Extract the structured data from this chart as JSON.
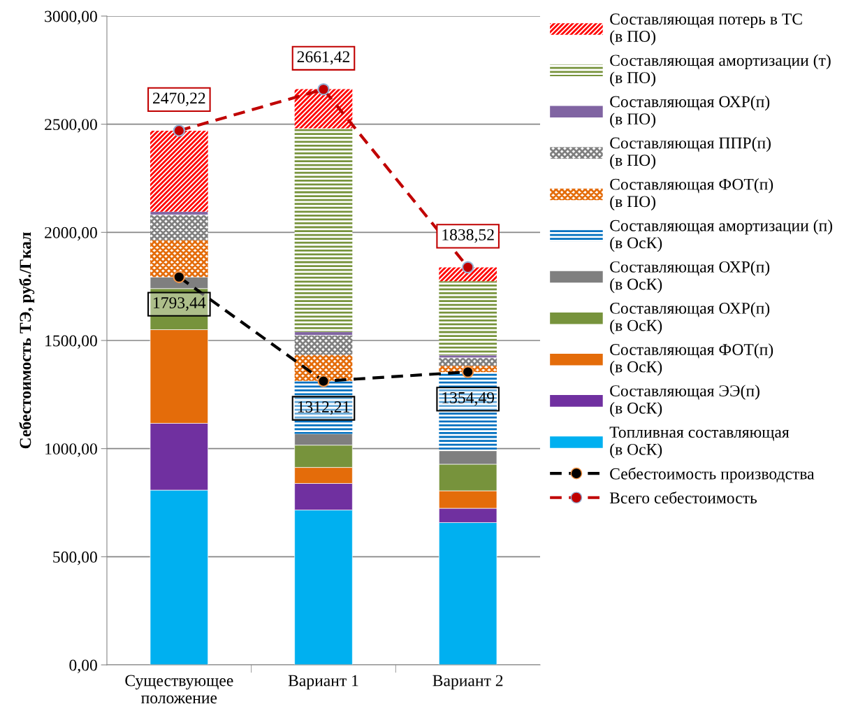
{
  "chart_data": {
    "type": "bar",
    "stacked": true,
    "ylabel": "Себестоимость ТЭ, руб./Гкал",
    "categories": [
      "Существующее\nположение",
      "Вариант 1",
      "Вариант 2"
    ],
    "ylim": [
      0,
      3000
    ],
    "yticks": [
      {
        "value": 0,
        "label": "0,00"
      },
      {
        "value": 500,
        "label": "500,00"
      },
      {
        "value": 1000,
        "label": "1000,00"
      },
      {
        "value": 1500,
        "label": "1500,00"
      },
      {
        "value": 2000,
        "label": "2000,00"
      },
      {
        "value": 2500,
        "label": "2500,00"
      },
      {
        "value": 3000,
        "label": "3000,00"
      }
    ],
    "grid": "y",
    "legend": "right",
    "series": [
      {
        "name": "Топливная составляющая\n(в ОсК)",
        "color": "#00b0f0",
        "values": [
          808,
          716,
          658
        ]
      },
      {
        "name": "Составляющая ЭЭ(п)\n(в ОсК)",
        "color": "#7030a0",
        "values": [
          309,
          123,
          66
        ]
      },
      {
        "name": "Составляющая ФОТ(п)\n(в ОсК)",
        "color": "#e46c0a",
        "values": [
          433,
          74,
          81
        ]
      },
      {
        "name": "Составляющая ОХР(п)\n(в ОсК)",
        "color": "#77933c",
        "values": [
          190,
          103,
          123
        ]
      },
      {
        "name": "Составляющая ОХР(п)\n(в ОсК)",
        "color": "#7f7f7f",
        "values": [
          53,
          52,
          62
        ]
      },
      {
        "name": "Составляющая амортизации (п)\n(в ОсК)",
        "color": "#0070c0",
        "values": [
          0,
          245,
          364
        ]
      },
      {
        "name": "Составляющая ФОТ(п)\n(в ПО)",
        "color": "#e46c0a",
        "values": [
          171,
          121,
          29
        ]
      },
      {
        "name": "Составляющая ППР(п)\n(в ПО)",
        "color": "#7f7f7f",
        "values": [
          117,
          90,
          37
        ]
      },
      {
        "name": "Составляющая ОХР(п)\n(в ПО)",
        "color": "#8064a2",
        "values": [
          15,
          16,
          12
        ]
      },
      {
        "name": "Составляющая амортизации (т)\n(в ПО)",
        "color": "#77933c",
        "values": [
          0,
          941,
          342
        ]
      },
      {
        "name": "Составляющая потерь в ТС\n(в ПО)",
        "color": "#ff0000",
        "values": [
          374,
          181,
          64
        ]
      },
      {
        "name": "Себестоимость производства",
        "type": "line",
        "color": "#000000",
        "marker": "circle",
        "line_style": "dashed",
        "values": [
          1793.44,
          1312.21,
          1354.49
        ],
        "value_labels": [
          "1793,44",
          "1312,21",
          "1354,49"
        ]
      },
      {
        "name": "Всего себестоимость",
        "type": "line",
        "color": "#c00000",
        "marker": "circle",
        "line_style": "dashed",
        "values": [
          2470.22,
          2661.42,
          1838.52
        ],
        "value_labels": [
          "2470,22",
          "2661,42",
          "1838,52"
        ]
      }
    ]
  }
}
